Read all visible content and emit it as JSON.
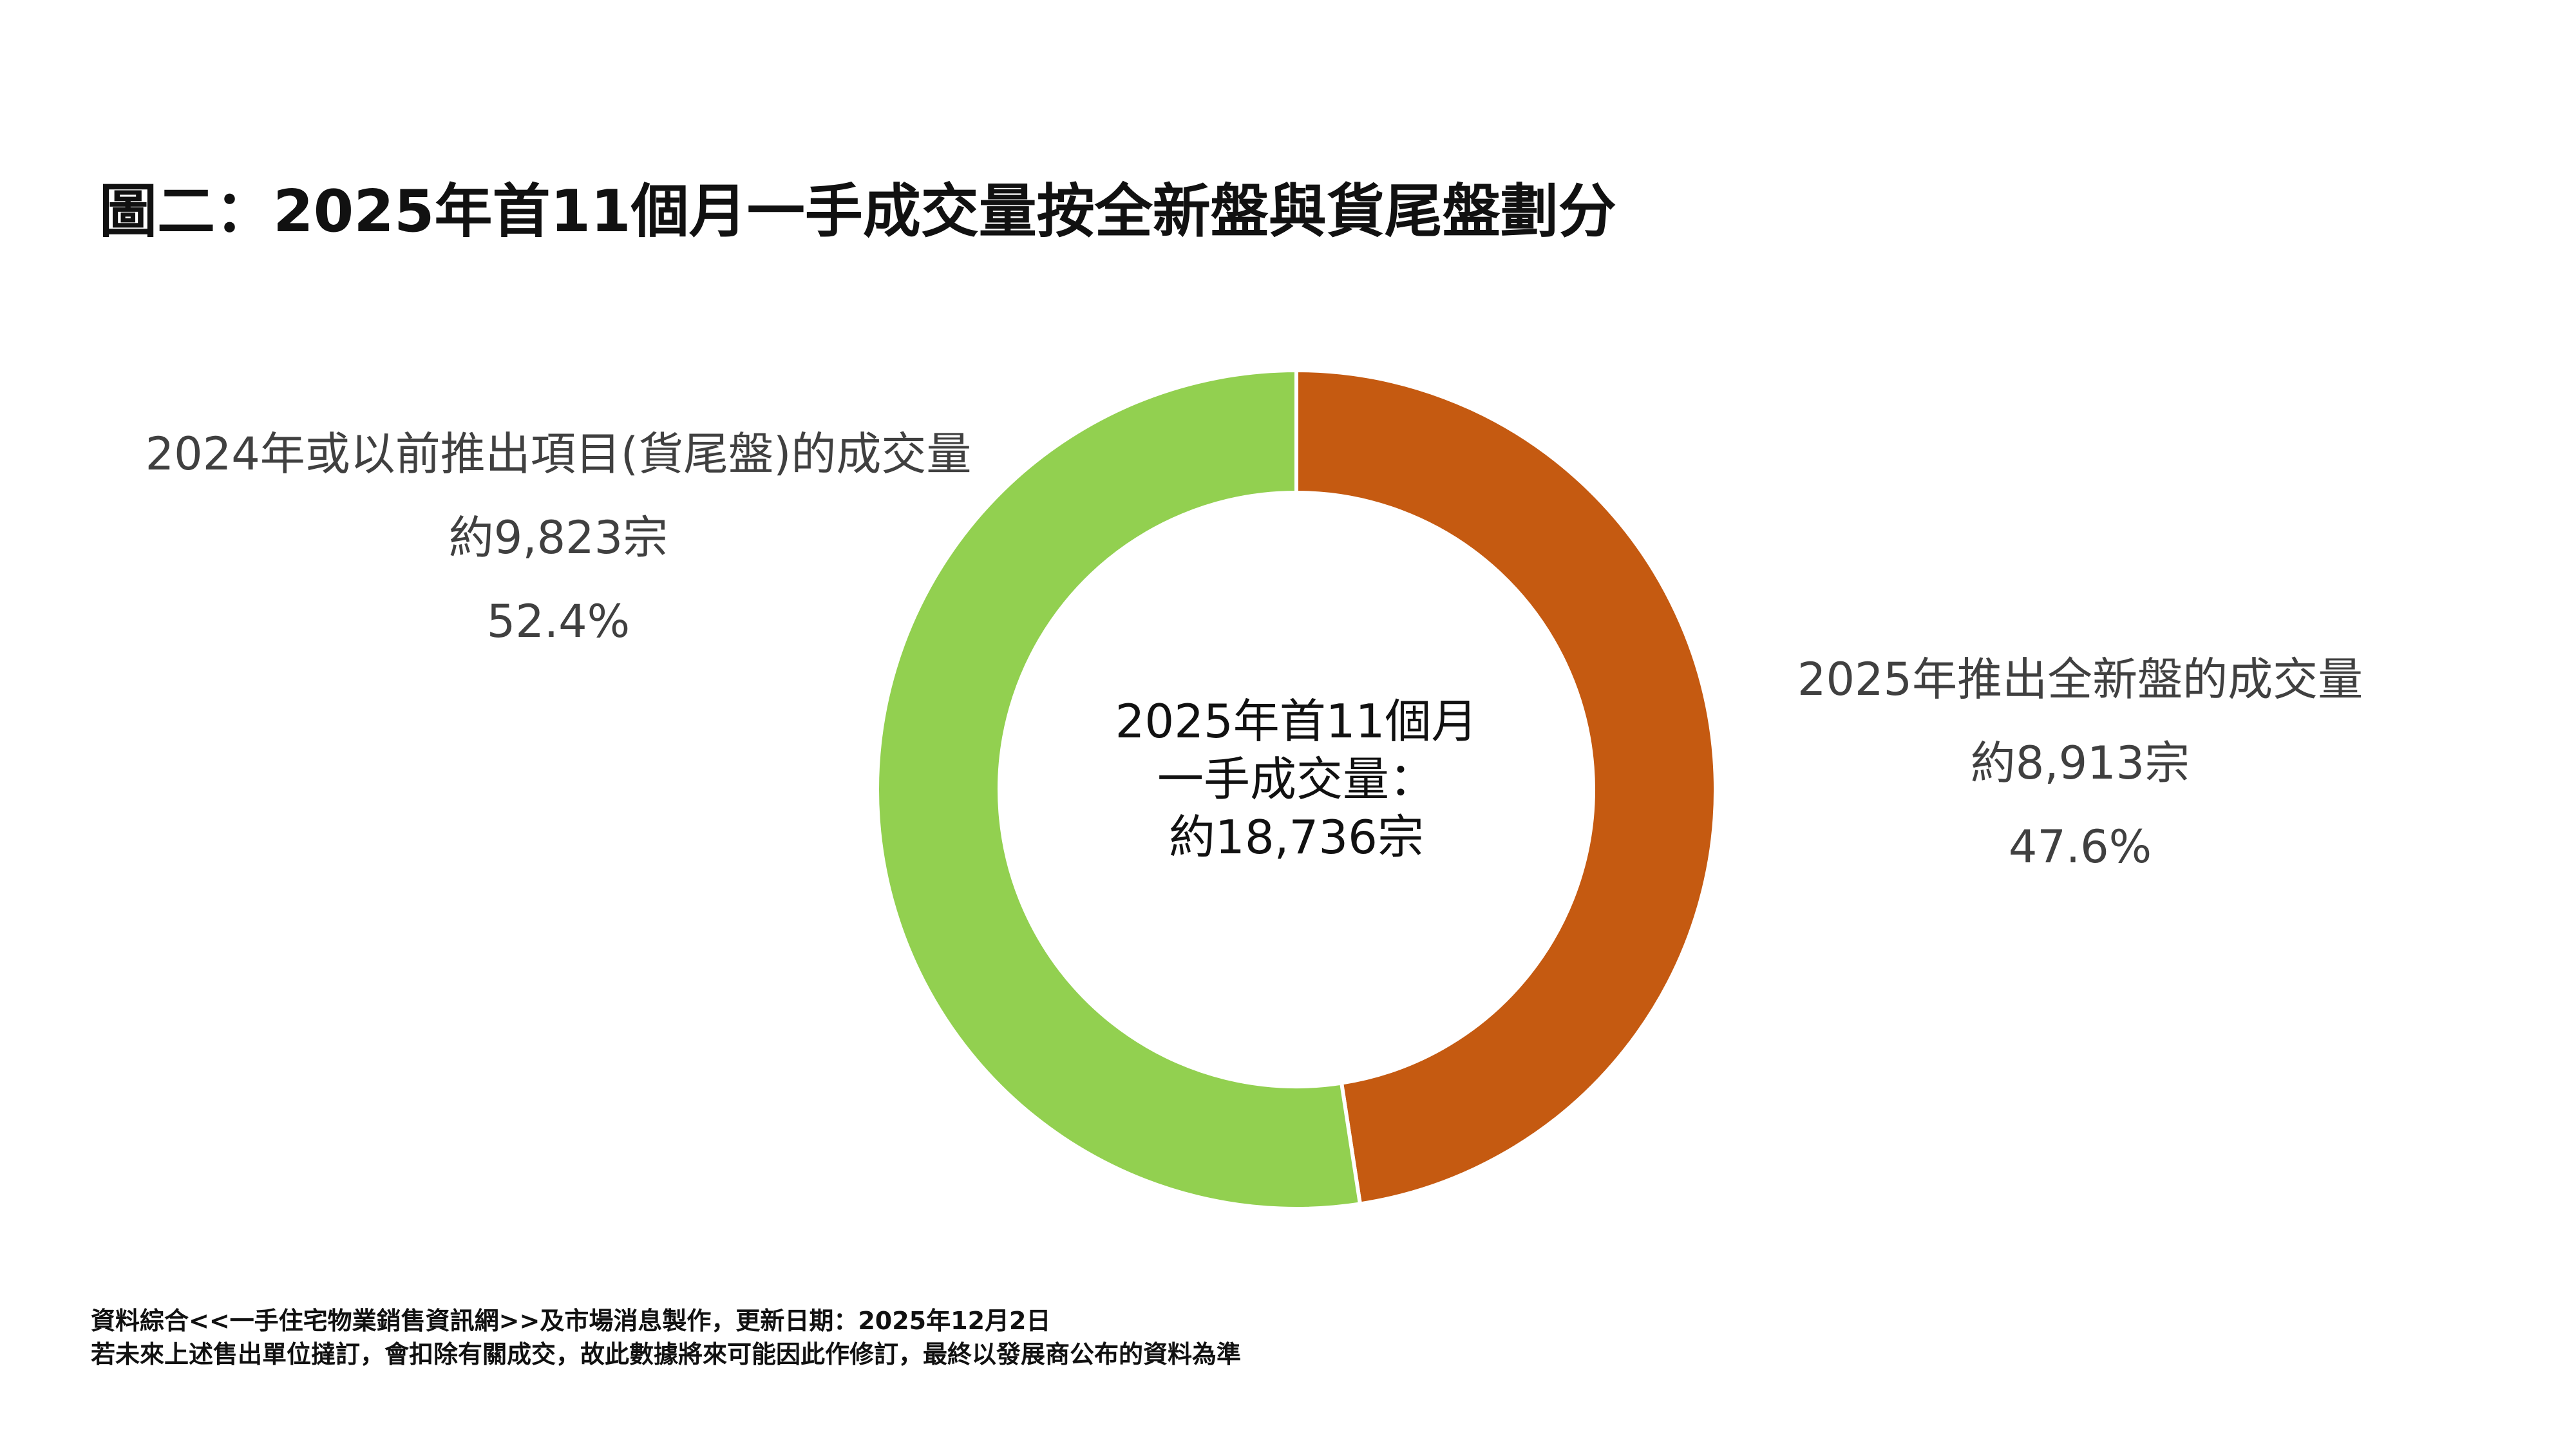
{
  "chart_data": {
    "type": "pie",
    "title": "圖二：2025年首11個月一手成交量按全新盤與貨尾盤劃分",
    "center_label": [
      "2025年首11個月",
      "一手成交量：",
      "約18,736宗"
    ],
    "slices": [
      {
        "name": "2025年推出全新盤的成交量",
        "value": 8913,
        "value_label": "約8,913宗",
        "percent": 47.6,
        "percent_label": "47.6%",
        "color": "#C55A11"
      },
      {
        "name": "2024年或以前推出項目(貨尾盤)的成交量",
        "value": 9823,
        "value_label": "約9,823宗",
        "percent": 52.4,
        "percent_label": "52.4%",
        "color": "#92D050"
      }
    ]
  },
  "footer": [
    "資料綜合<<一手住宅物業銷售資訊網>>及市場消息製作，更新日期：2025年12月2日",
    "若未來上述售出單位撻訂，會扣除有關成交，故此數據將來可能因此作修訂，最終以發展商公布的資料為準"
  ]
}
